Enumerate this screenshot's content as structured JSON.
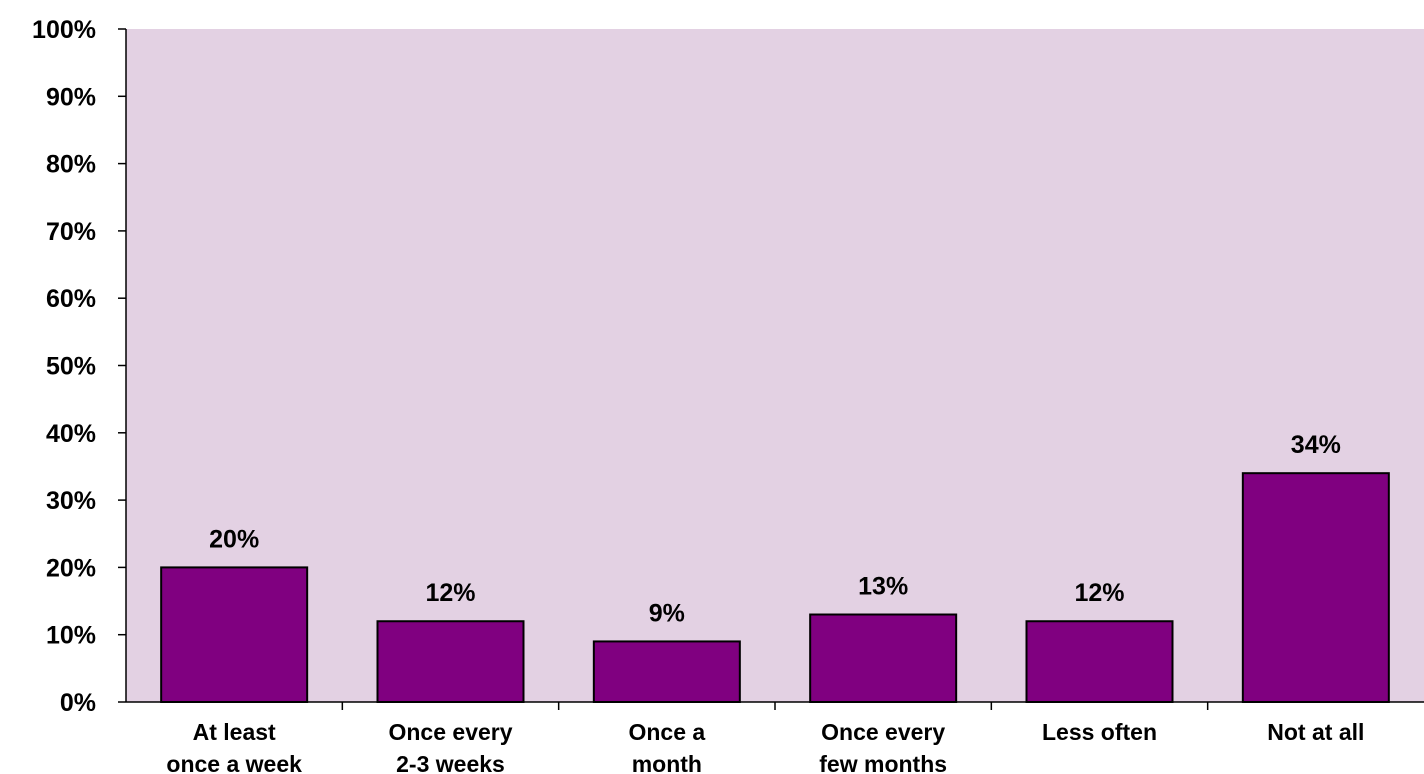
{
  "chart_data": {
    "type": "bar",
    "title": "",
    "xlabel": "",
    "ylabel": "",
    "categories": [
      [
        "At least",
        "once a week"
      ],
      [
        "Once every",
        "2-3 weeks"
      ],
      [
        "Once a",
        "month"
      ],
      [
        "Once every",
        "few months"
      ],
      [
        "Less often"
      ],
      [
        "Not at all"
      ]
    ],
    "values": [
      20,
      12,
      9,
      13,
      12,
      34
    ],
    "value_labels": [
      "20%",
      "12%",
      "9%",
      "13%",
      "12%",
      "34%"
    ],
    "ylim": [
      0,
      100
    ],
    "yticks": [
      0,
      10,
      20,
      30,
      40,
      50,
      60,
      70,
      80,
      90,
      100
    ],
    "ytick_labels": [
      "0%",
      "10%",
      "20%",
      "30%",
      "40%",
      "50%",
      "60%",
      "70%",
      "80%",
      "90%",
      "100%"
    ],
    "grid": false,
    "legend": "none",
    "colors": {
      "plot_background": "#e3d1e3",
      "bar_fill": "#800080",
      "bar_stroke": "#000000",
      "axis": "#000000"
    }
  }
}
